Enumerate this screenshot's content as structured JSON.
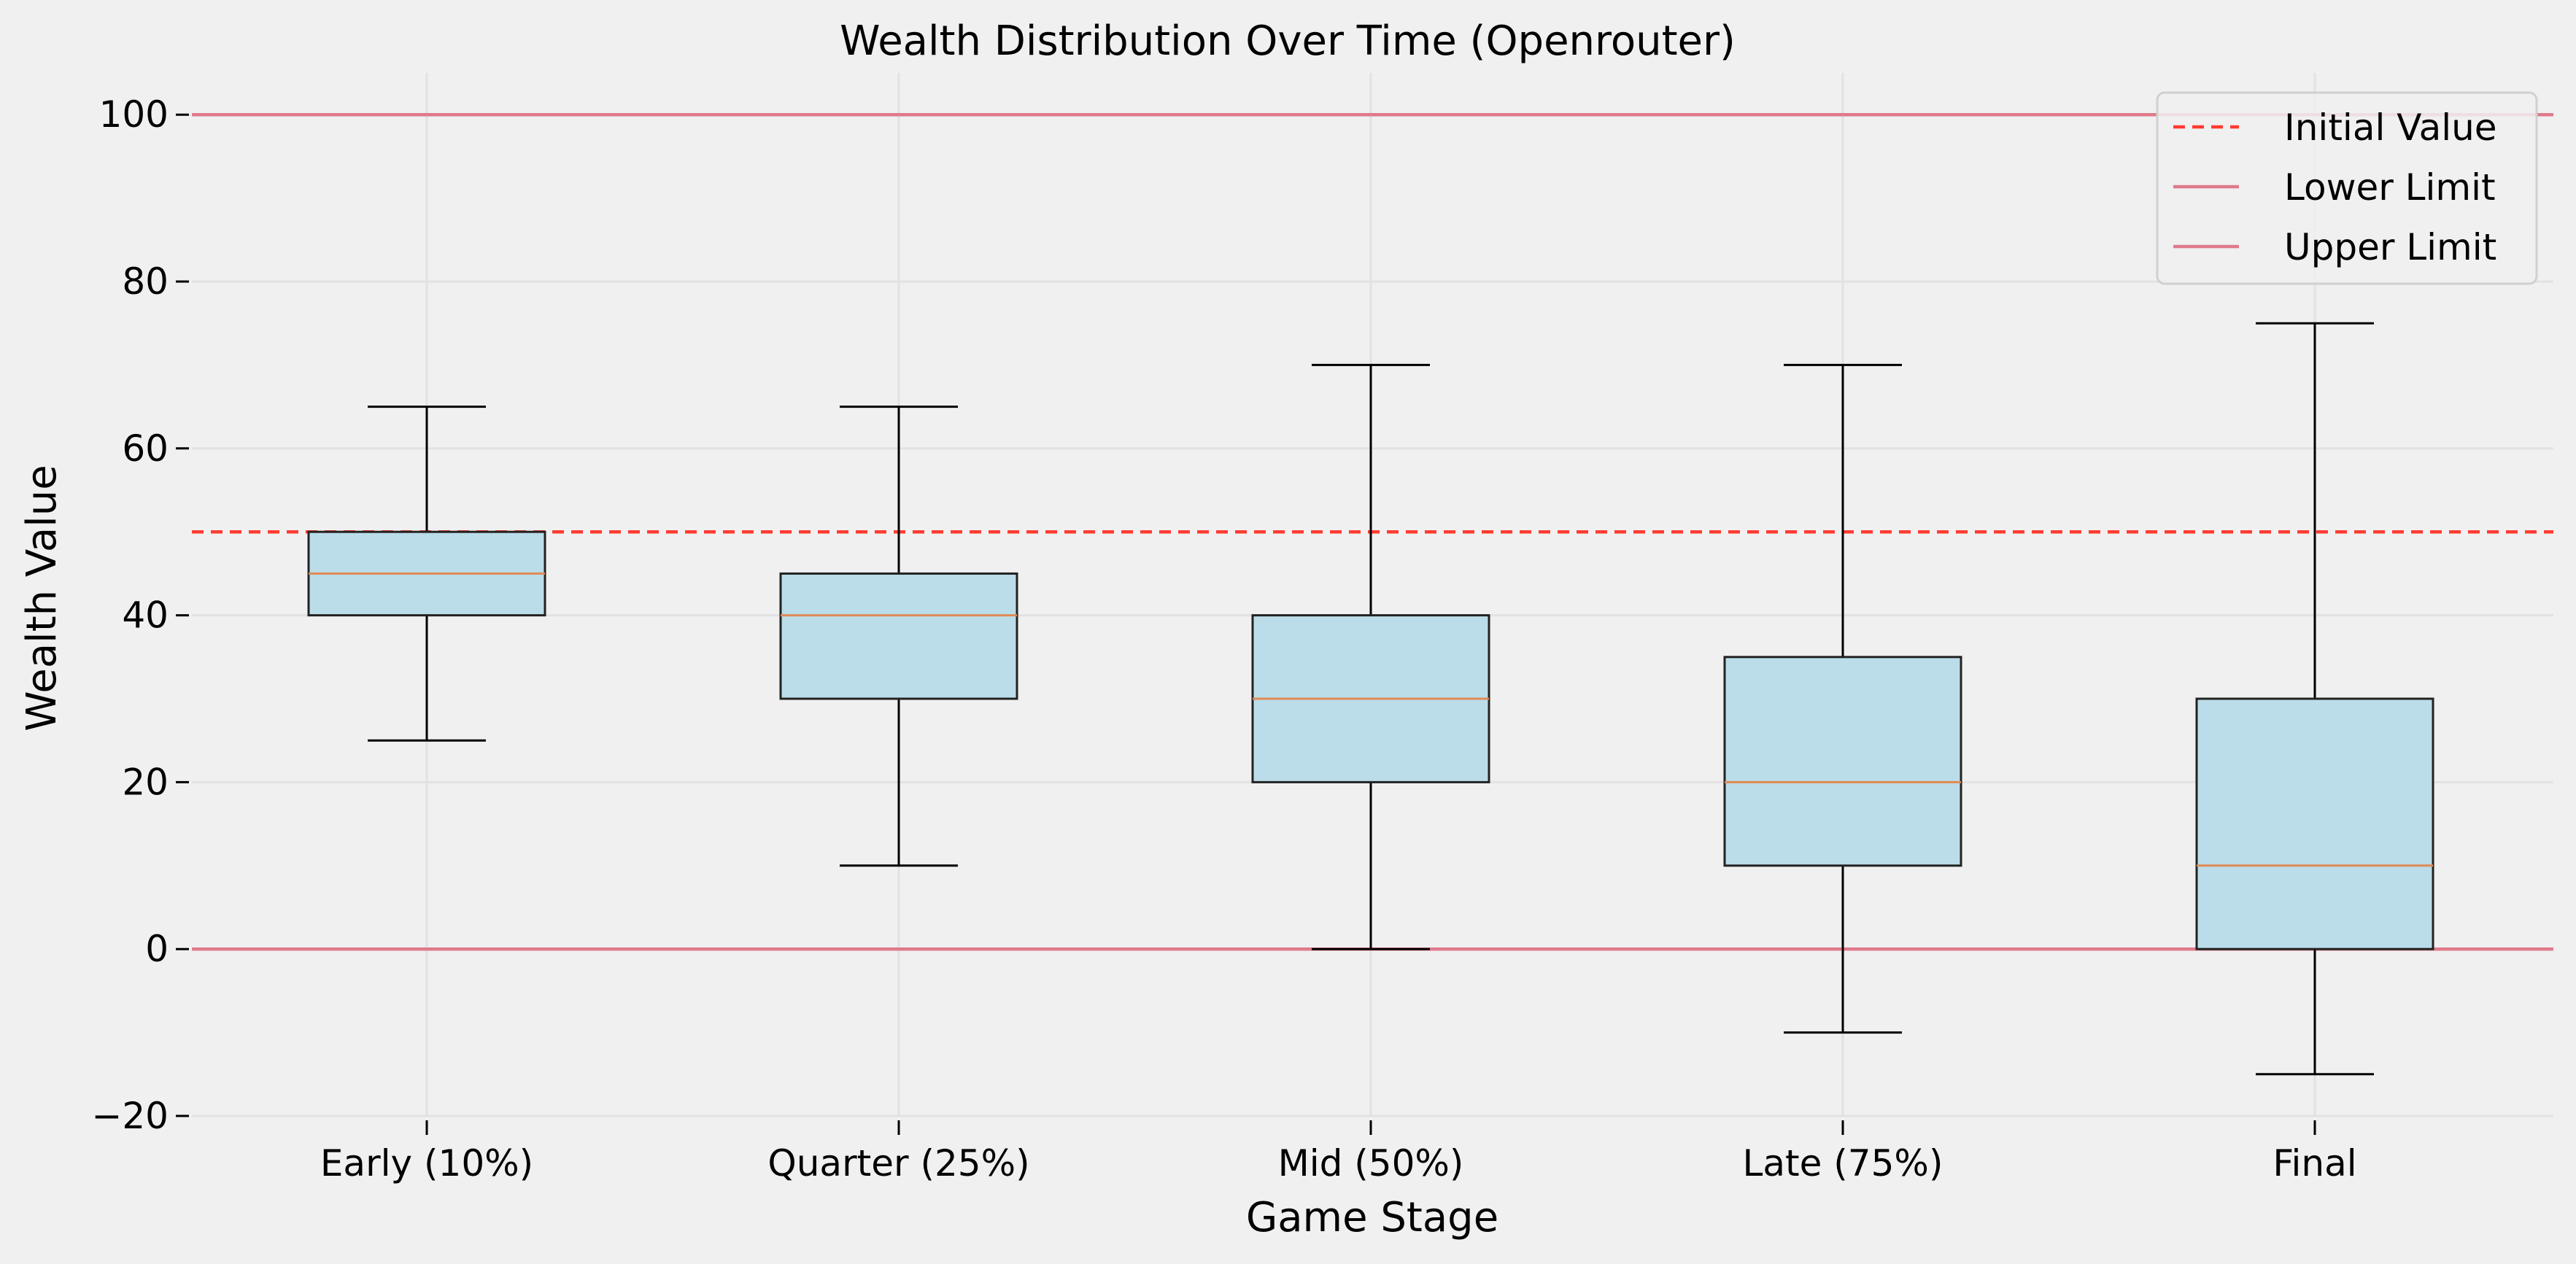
{
  "chart_data": {
    "type": "box",
    "title": "Wealth Distribution Over Time (Openrouter)",
    "xlabel": "Game Stage",
    "ylabel": "Wealth Value",
    "ylim": [
      -20,
      105
    ],
    "yticks": [
      -20,
      0,
      20,
      40,
      60,
      80,
      100
    ],
    "ytick_labels": [
      "−20",
      "0",
      "20",
      "40",
      "60",
      "80",
      "100"
    ],
    "categories": [
      "Early (10%)",
      "Quarter (25%)",
      "Mid (50%)",
      "Late (75%)",
      "Final"
    ],
    "boxes": [
      {
        "whisker_low": 25,
        "q1": 40,
        "median": 45,
        "q3": 50,
        "whisker_high": 65
      },
      {
        "whisker_low": 10,
        "q1": 30,
        "median": 40,
        "q3": 45,
        "whisker_high": 65
      },
      {
        "whisker_low": 0,
        "q1": 20,
        "median": 30,
        "q3": 40,
        "whisker_high": 70
      },
      {
        "whisker_low": -10,
        "q1": 10,
        "median": 20,
        "q3": 35,
        "whisker_high": 70
      },
      {
        "whisker_low": -15,
        "q1": 0,
        "median": 10,
        "q3": 30,
        "whisker_high": 75
      }
    ],
    "reference_lines": [
      {
        "name": "Initial Value",
        "y": 50,
        "style": "dashed",
        "color": "#ff3b30"
      },
      {
        "name": "Lower Limit",
        "y": 0,
        "style": "solid",
        "color": "#e07a8b"
      },
      {
        "name": "Upper Limit",
        "y": 100,
        "style": "solid",
        "color": "#e07a8b"
      }
    ],
    "legend_position": "top-right",
    "grid": true,
    "colors": {
      "background": "#f0f0f0",
      "box_fill": "#bbdde9",
      "box_edge": "#222222",
      "median": "#e08a55",
      "grid": "#e2e2e2"
    }
  }
}
